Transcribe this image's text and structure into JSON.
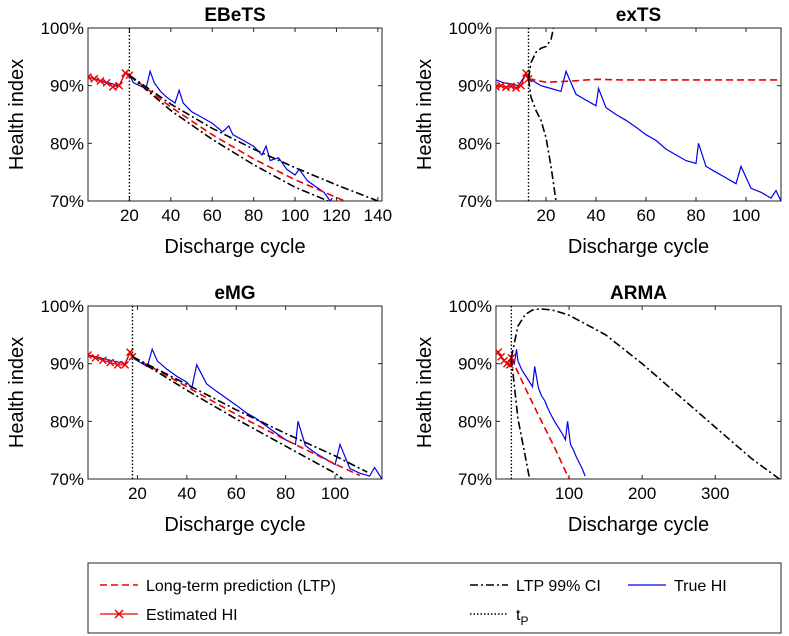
{
  "chart_data": [
    {
      "type": "line",
      "title": "EBeTS",
      "xlabel": "Discharge cycle",
      "ylabel": "Health index",
      "xlim": [
        0,
        142
      ],
      "ylim": [
        0.7,
        1.0
      ],
      "xticks": [
        20,
        40,
        60,
        80,
        100,
        120,
        140
      ],
      "yticks": [
        0.7,
        0.8,
        0.9,
        1.0
      ],
      "ytick_labels": [
        "70%",
        "80%",
        "90%",
        "100%"
      ],
      "tp": 20,
      "series": [
        {
          "name": "True HI",
          "color": "#0000ee",
          "style": "solid",
          "x": [
            0,
            5,
            10,
            15,
            18,
            20,
            22,
            25,
            28,
            30,
            32,
            35,
            38,
            42,
            44,
            46,
            50,
            55,
            60,
            65,
            68,
            70,
            75,
            80,
            84,
            86,
            88,
            92,
            96,
            100,
            102,
            106,
            110,
            114,
            117,
            118
          ],
          "y": [
            0.915,
            0.91,
            0.905,
            0.9,
            0.922,
            0.918,
            0.905,
            0.9,
            0.895,
            0.925,
            0.905,
            0.89,
            0.88,
            0.87,
            0.892,
            0.87,
            0.855,
            0.845,
            0.835,
            0.82,
            0.83,
            0.815,
            0.805,
            0.795,
            0.78,
            0.795,
            0.77,
            0.775,
            0.755,
            0.745,
            0.755,
            0.735,
            0.725,
            0.715,
            0.7,
            0.705
          ]
        },
        {
          "name": "Estimated HI",
          "color": "#ee0000",
          "style": "solid",
          "marker": "x",
          "x": [
            0,
            3,
            6,
            9,
            12,
            15,
            18,
            20
          ],
          "y": [
            0.915,
            0.912,
            0.908,
            0.905,
            0.898,
            0.9,
            0.922,
            0.918
          ]
        },
        {
          "name": "Long-term prediction (LTP)",
          "color": "#ee0000",
          "style": "dashed",
          "x": [
            20,
            40,
            60,
            80,
            100,
            124
          ],
          "y": [
            0.918,
            0.863,
            0.815,
            0.773,
            0.737,
            0.7
          ]
        },
        {
          "name": "LTP 99% CI",
          "color": "#000000",
          "style": "dashdot",
          "x": [
            20,
            40,
            60,
            80,
            100,
            120,
            140
          ],
          "y": [
            0.918,
            0.868,
            0.826,
            0.79,
            0.758,
            0.728,
            0.7
          ]
        },
        {
          "name": "",
          "color": "#000000",
          "style": "dashdot",
          "x": [
            20,
            40,
            60,
            80,
            100,
            116
          ],
          "y": [
            0.918,
            0.857,
            0.807,
            0.763,
            0.724,
            0.7
          ]
        }
      ]
    },
    {
      "type": "line",
      "title": "exTS",
      "xlabel": "Discharge cycle",
      "ylabel": "Health index",
      "xlim": [
        0,
        114
      ],
      "ylim": [
        0.7,
        1.0
      ],
      "xticks": [
        20,
        40,
        60,
        80,
        100
      ],
      "yticks": [
        0.7,
        0.8,
        0.9,
        1.0
      ],
      "ytick_labels": [
        "70%",
        "80%",
        "90%",
        "100%"
      ],
      "tp": 13,
      "series": [
        {
          "name": "True HI",
          "color": "#0000ee",
          "style": "solid",
          "x": [
            0,
            3,
            6,
            9,
            12,
            13,
            15,
            18,
            22,
            26,
            28,
            32,
            36,
            40,
            41,
            44,
            48,
            52,
            56,
            60,
            64,
            68,
            72,
            76,
            80,
            81,
            84,
            88,
            92,
            96,
            98,
            102,
            106,
            110,
            112,
            114
          ],
          "y": [
            0.91,
            0.905,
            0.903,
            0.9,
            0.92,
            0.912,
            0.908,
            0.9,
            0.895,
            0.89,
            0.925,
            0.885,
            0.875,
            0.865,
            0.895,
            0.862,
            0.85,
            0.84,
            0.828,
            0.815,
            0.805,
            0.79,
            0.78,
            0.77,
            0.765,
            0.8,
            0.76,
            0.75,
            0.74,
            0.73,
            0.76,
            0.722,
            0.715,
            0.705,
            0.718,
            0.7
          ]
        },
        {
          "name": "Estimated HI",
          "color": "#ee0000",
          "style": "solid",
          "marker": "x",
          "x": [
            0,
            2,
            4,
            6,
            8,
            10,
            12,
            13
          ],
          "y": [
            0.898,
            0.9,
            0.897,
            0.899,
            0.896,
            0.9,
            0.922,
            0.912
          ]
        },
        {
          "name": "Long-term prediction (LTP)",
          "color": "#ee0000",
          "style": "dashed",
          "x": [
            13,
            20,
            30,
            40,
            50,
            70,
            90,
            114
          ],
          "y": [
            0.912,
            0.906,
            0.908,
            0.911,
            0.91,
            0.91,
            0.91,
            0.91
          ]
        },
        {
          "name": "LTP 99% CI",
          "color": "#000000",
          "style": "dashdot",
          "x": [
            13,
            14,
            16,
            18,
            20,
            22,
            23
          ],
          "y": [
            0.912,
            0.94,
            0.958,
            0.965,
            0.968,
            0.98,
            1.0
          ]
        },
        {
          "name": "",
          "color": "#000000",
          "style": "dashdot",
          "x": [
            13,
            14,
            16,
            18,
            20,
            22,
            24
          ],
          "y": [
            0.912,
            0.88,
            0.857,
            0.84,
            0.81,
            0.76,
            0.7
          ]
        }
      ]
    },
    {
      "type": "line",
      "title": "eMG",
      "xlabel": "Discharge cycle",
      "ylabel": "Health index",
      "xlim": [
        0,
        119
      ],
      "ylim": [
        0.7,
        1.0
      ],
      "xticks": [
        20,
        40,
        60,
        80,
        100
      ],
      "yticks": [
        0.7,
        0.8,
        0.9,
        1.0
      ],
      "ytick_labels": [
        "70%",
        "80%",
        "90%",
        "100%"
      ],
      "tp": 18,
      "series": [
        {
          "name": "True HI",
          "color": "#0000ee",
          "style": "solid",
          "x": [
            0,
            5,
            10,
            15,
            17,
            18,
            20,
            24,
            26,
            28,
            32,
            36,
            40,
            42,
            44,
            48,
            52,
            56,
            60,
            64,
            68,
            72,
            76,
            80,
            84,
            85,
            88,
            92,
            96,
            100,
            102,
            106,
            110,
            114,
            116,
            119
          ],
          "y": [
            0.915,
            0.91,
            0.905,
            0.9,
            0.92,
            0.912,
            0.905,
            0.895,
            0.925,
            0.905,
            0.89,
            0.878,
            0.868,
            0.858,
            0.898,
            0.865,
            0.852,
            0.84,
            0.828,
            0.815,
            0.805,
            0.792,
            0.78,
            0.768,
            0.76,
            0.8,
            0.758,
            0.745,
            0.735,
            0.725,
            0.76,
            0.718,
            0.71,
            0.705,
            0.72,
            0.7
          ]
        },
        {
          "name": "Estimated HI",
          "color": "#ee0000",
          "style": "solid",
          "marker": "x",
          "x": [
            0,
            3,
            6,
            9,
            12,
            15,
            17,
            18
          ],
          "y": [
            0.915,
            0.91,
            0.906,
            0.902,
            0.898,
            0.898,
            0.92,
            0.912
          ]
        },
        {
          "name": "Long-term prediction (LTP)",
          "color": "#ee0000",
          "style": "dashed",
          "x": [
            18,
            40,
            60,
            80,
            100,
            110
          ],
          "y": [
            0.912,
            0.86,
            0.812,
            0.768,
            0.726,
            0.706
          ]
        },
        {
          "name": "LTP 99% CI",
          "color": "#000000",
          "style": "dashdot",
          "x": [
            18,
            40,
            60,
            80,
            100,
            113
          ],
          "y": [
            0.912,
            0.864,
            0.82,
            0.779,
            0.74,
            0.712
          ]
        },
        {
          "name": "",
          "color": "#000000",
          "style": "dashdot",
          "x": [
            18,
            40,
            60,
            80,
            100,
            103
          ],
          "y": [
            0.912,
            0.854,
            0.804,
            0.757,
            0.71,
            0.7
          ]
        }
      ]
    },
    {
      "type": "line",
      "title": "ARMA",
      "xlabel": "Discharge cycle",
      "ylabel": "Health index",
      "xlim": [
        0,
        390
      ],
      "ylim": [
        0.7,
        1.0
      ],
      "xticks": [
        100,
        200,
        300
      ],
      "yticks": [
        0.7,
        0.8,
        0.9,
        1.0
      ],
      "ytick_labels": [
        "70%",
        "80%",
        "90%",
        "100%"
      ],
      "tp": 21,
      "series": [
        {
          "name": "True HI",
          "color": "#0000ee",
          "style": "solid",
          "x": [
            21,
            25,
            28,
            30,
            35,
            40,
            45,
            50,
            53,
            58,
            62,
            67,
            70,
            75,
            80,
            85,
            90,
            95,
            98,
            102,
            106,
            110,
            114,
            118,
            122
          ],
          "y": [
            0.91,
            0.9,
            0.925,
            0.905,
            0.89,
            0.88,
            0.87,
            0.86,
            0.895,
            0.858,
            0.845,
            0.835,
            0.825,
            0.812,
            0.8,
            0.79,
            0.78,
            0.768,
            0.8,
            0.76,
            0.75,
            0.738,
            0.728,
            0.718,
            0.705
          ]
        },
        {
          "name": "Estimated HI",
          "color": "#ee0000",
          "style": "solid",
          "marker": "x",
          "x": [
            3,
            7,
            11,
            15,
            19,
            21
          ],
          "y": [
            0.92,
            0.912,
            0.905,
            0.9,
            0.898,
            0.91
          ]
        },
        {
          "name": "Long-term prediction (LTP)",
          "color": "#ee0000",
          "style": "dashed",
          "x": [
            21,
            40,
            60,
            80,
            100
          ],
          "y": [
            0.91,
            0.858,
            0.806,
            0.755,
            0.7
          ]
        },
        {
          "name": "LTP 99% CI",
          "color": "#000000",
          "style": "dashdot",
          "x": [
            21,
            30,
            40,
            50,
            60,
            70,
            80,
            100,
            150,
            200,
            250,
            300,
            350,
            388
          ],
          "y": [
            0.91,
            0.965,
            0.985,
            0.993,
            0.995,
            0.994,
            0.992,
            0.984,
            0.95,
            0.9,
            0.845,
            0.79,
            0.735,
            0.7
          ]
        },
        {
          "name": "",
          "color": "#000000",
          "style": "dashdot",
          "x": [
            21,
            30,
            40,
            46
          ],
          "y": [
            0.91,
            0.805,
            0.74,
            0.7
          ]
        }
      ]
    }
  ],
  "legend": {
    "placement": "bottom",
    "entries": [
      {
        "label": "Long-term prediction (LTP)",
        "color": "#ee0000",
        "style": "dashed"
      },
      {
        "label": "LTP 99% CI",
        "color": "#000000",
        "style": "dashdot"
      },
      {
        "label": "True HI",
        "color": "#0000ee",
        "style": "solid"
      },
      {
        "label": "Estimated HI",
        "color": "#ee0000",
        "style": "solid",
        "marker": "x"
      },
      {
        "label": "t",
        "sub": "P",
        "color": "#000000",
        "style": "dotted"
      }
    ]
  }
}
